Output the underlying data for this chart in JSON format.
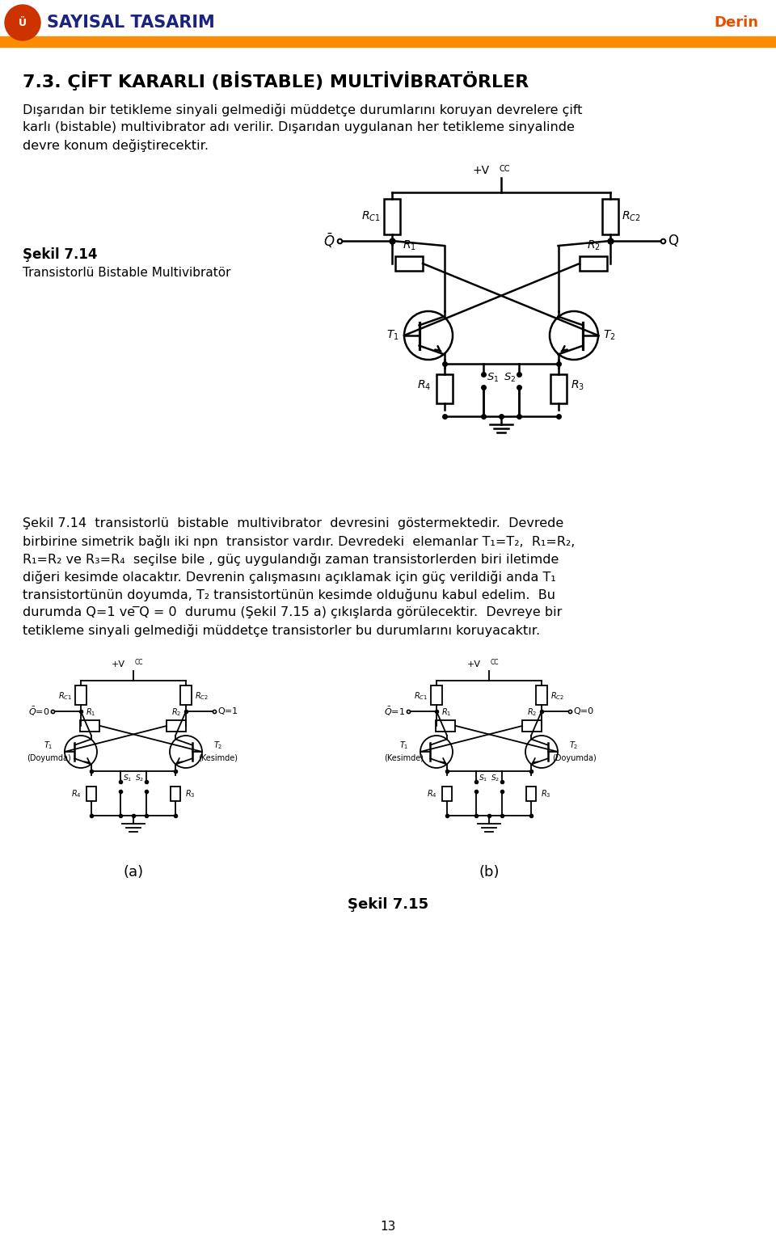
{
  "header_text": "SAYISAL TASARIM",
  "header_right": "Derin",
  "header_bar_color": "#FF8C00",
  "header_text_color": "#1a237e",
  "title": "7.3. ÇİFT KARARLI (BİSTABLE) MULTİVİBRATÖRLER",
  "para1_lines": [
    "Dışarıdan bir tetikleme sinyali gelmediği müddetçe durumlarını koruyan devrelere çift",
    "karlı (bistable) multivibrator adı verilir. Dışarıdan uygulanan her tetikleme sinyalinde",
    "devre konum değiştirecektir."
  ],
  "sekil_label": "Şekil 7.14",
  "sekil_desc": "Transistorlü Bistable Multivibratör",
  "para2_lines": [
    "Şekil 7.14  transistorlü  bistable  multivibrator  devresini  göstermektedir.  Devrede",
    "birbirine simetrik bağlı iki npn  transistor vardır. Devredeki  elemanlar T₁=T₂,  R₁=R₂,",
    "R₁=R₂ ve R₃=R₄  seçilse bile , güç uygulandığı zaman transistorlerden biri iletimde",
    "diğeri kesimde olacaktır. Devrenin çalışmasını açıklamak için güç verildiği anda T₁",
    "transistortünün doyumda, T₂ transistortünün kesimde olduğunu kabul edelim.  Bu",
    "durumda Q=1 ve ̅Q = 0  durumu (Şekil 7.15 a) çıkışlarda görülecektir.  Devreye bir",
    "tetikleme sinyali gelmediği müddetçe transistorler bu durumlarını koruyacaktır."
  ],
  "sekil15_label": "Şekil 7.15",
  "page_number": "13",
  "background": "#ffffff",
  "text_color": "#000000"
}
